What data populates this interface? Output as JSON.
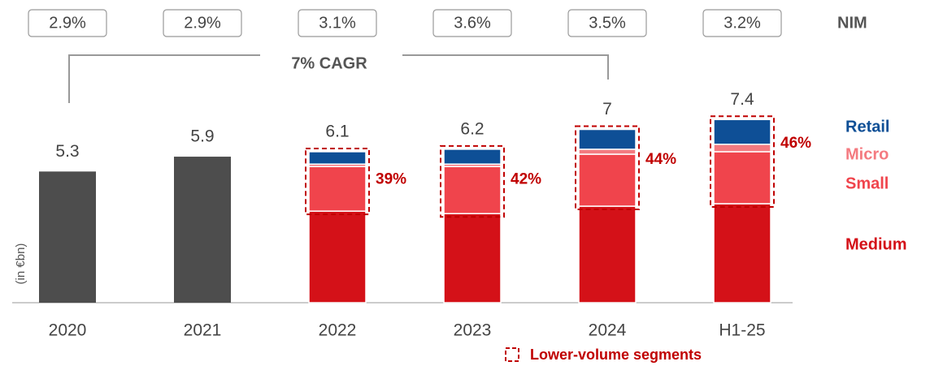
{
  "chart_data": {
    "type": "stacked_bar",
    "y_label": "(in €bn)",
    "categories": [
      "2020",
      "2021",
      "2022",
      "2023",
      "2024",
      "H1-25"
    ],
    "series": [
      {
        "color": "#4d4d4d",
        "values": [
          5.3,
          5.9,
          null,
          null,
          null,
          null
        ]
      },
      {
        "name": "Medium",
        "color": "#d41118",
        "values": [
          null,
          null,
          3.7,
          3.6,
          3.9,
          4.0
        ]
      },
      {
        "name": "Small",
        "color": "#f0444c",
        "values": [
          null,
          null,
          1.8,
          1.9,
          2.1,
          2.1
        ]
      },
      {
        "name": "Micro",
        "color": "#f47a80",
        "values": [
          null,
          null,
          0.1,
          0.1,
          0.2,
          0.3
        ]
      },
      {
        "name": "Retail",
        "color": "#0e4f96",
        "values": [
          null,
          null,
          0.5,
          0.6,
          0.8,
          1.0
        ]
      }
    ],
    "totals": [
      5.3,
      5.9,
      6.1,
      6.2,
      7.0,
      7.4
    ],
    "lower_volume_share": {
      "values": [
        null,
        null,
        39,
        42,
        44,
        46
      ],
      "value_labels": [
        null,
        null,
        "39%",
        "42%",
        "44%",
        "46%"
      ],
      "legend": "Lower-volume segments",
      "color": "#c00000"
    },
    "nim": {
      "label": "NIM",
      "values": [
        2.9,
        2.9,
        3.1,
        3.6,
        3.5,
        3.2
      ],
      "value_labels": [
        "2.9%",
        "2.9%",
        "3.1%",
        "3.6%",
        "3.5%",
        "3.2%"
      ]
    },
    "annotation": "7% CAGR",
    "ylim": [
      0,
      12
    ]
  }
}
